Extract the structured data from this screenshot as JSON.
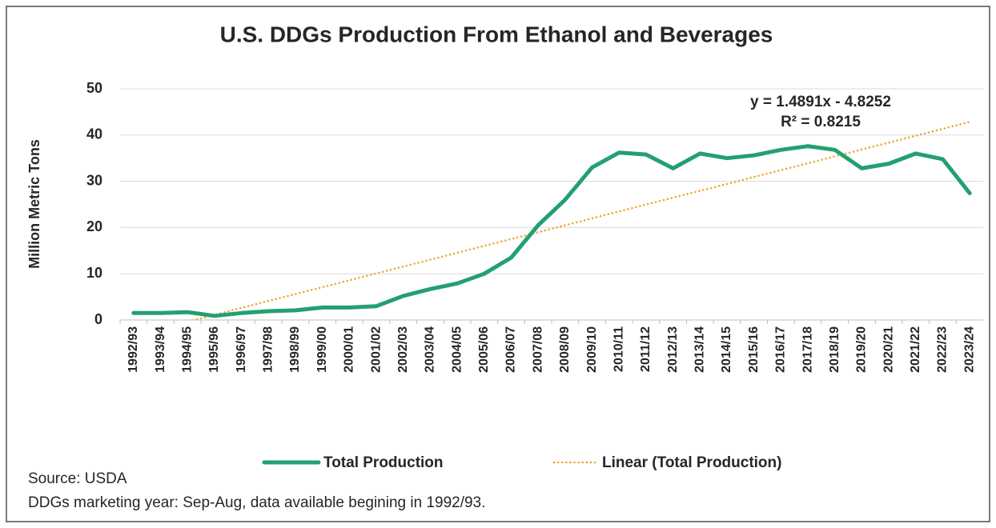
{
  "chart_data": {
    "type": "line",
    "title": "U.S. DDGs Production From Ethanol and Beverages",
    "y_label": "Million Metric Tons",
    "annotations": [
      "y = 1.4891x - 4.8252",
      "R² = 0.8215"
    ],
    "source": "Source: USDA",
    "note": "DDGs marketing year: Sep-Aug, data available begining in 1992/93.",
    "categories": [
      "1992/93",
      "1993/94",
      "1994/95",
      "1995/96",
      "1996/97",
      "1997/98",
      "1998/99",
      "1999/00",
      "2000/01",
      "2001/02",
      "2002/03",
      "2003/04",
      "2004/05",
      "2005/06",
      "2006/07",
      "2007/08",
      "2008/09",
      "2009/10",
      "2010/11",
      "2011/12",
      "2012/13",
      "2013/14",
      "2014/15",
      "2015/16",
      "2016/17",
      "2017/18",
      "2018/19",
      "2019/20",
      "2020/21",
      "2021/22",
      "2022/23",
      "2023/24"
    ],
    "series": [
      {
        "name": "Total Production",
        "color": "#23a06f",
        "style": "solid",
        "values": [
          1.5,
          1.5,
          1.7,
          0.9,
          1.5,
          1.9,
          2.1,
          2.7,
          2.7,
          3.0,
          5.2,
          6.7,
          7.9,
          10.0,
          13.5,
          20.5,
          26.0,
          33.0,
          36.2,
          35.8,
          32.8,
          36.0,
          35.0,
          35.6,
          36.8,
          37.6,
          36.8,
          32.8,
          33.8,
          36.0,
          34.8,
          27.4
        ]
      },
      {
        "name": "Linear (Total Production)",
        "color": "#f0a32e",
        "style": "dotted",
        "values": [
          -3.34,
          -1.85,
          -0.36,
          1.13,
          2.62,
          4.11,
          5.6,
          7.09,
          8.58,
          10.07,
          11.56,
          13.05,
          14.54,
          16.02,
          17.51,
          19.0,
          20.49,
          21.98,
          23.47,
          24.96,
          26.45,
          27.94,
          29.42,
          30.91,
          32.4,
          33.89,
          35.38,
          36.87,
          38.36,
          39.85,
          41.34,
          42.83
        ]
      }
    ],
    "ylim": [
      0,
      50
    ],
    "yticks": [
      0,
      10,
      20,
      30,
      40,
      50
    ],
    "grid": true
  }
}
